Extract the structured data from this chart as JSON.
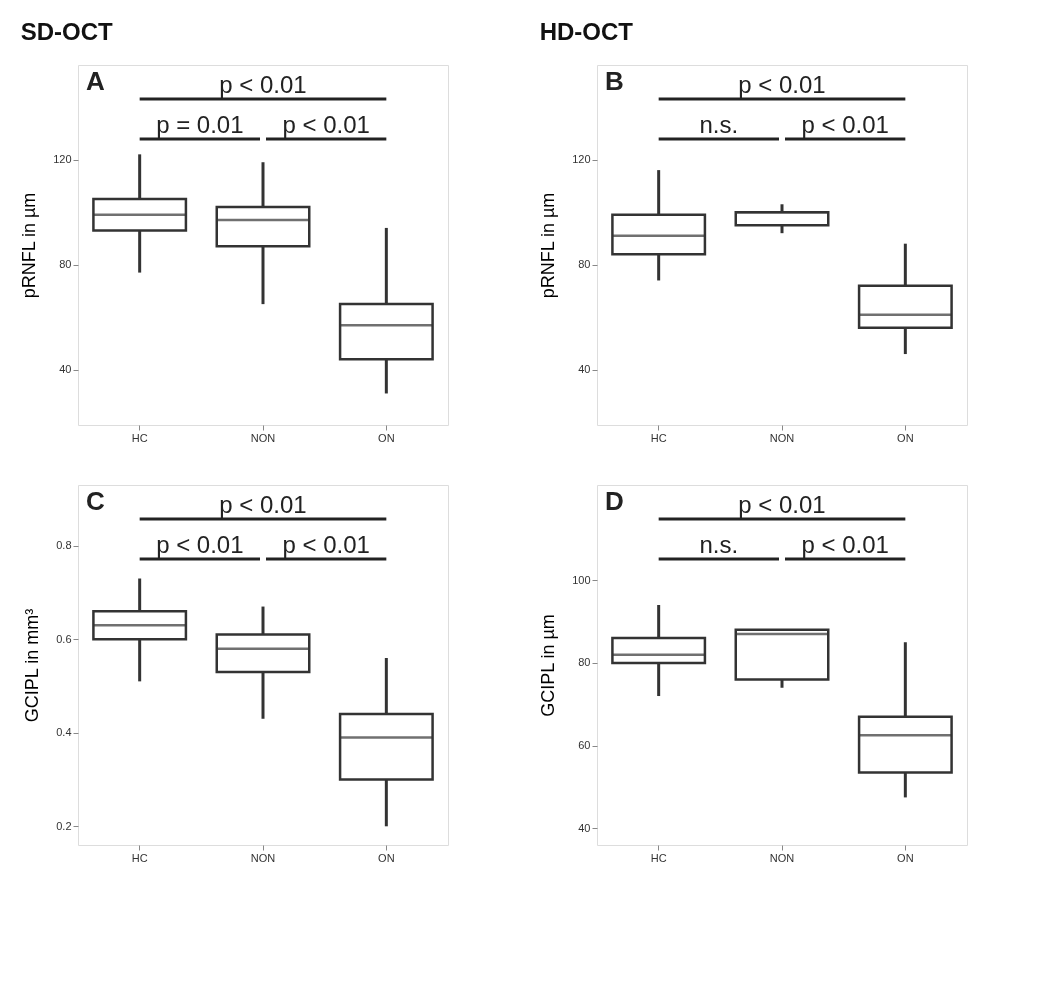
{
  "chart_data": [
    {
      "type": "box",
      "title": "A",
      "subtitle": "SD-OCT",
      "ylabel": "pRNFL in µm",
      "categories": [
        "HC",
        "NON",
        "ON"
      ],
      "ylim": [
        19,
        156
      ],
      "yticks": [
        40,
        80,
        120
      ],
      "grid": false,
      "boxes": [
        {
          "low": 77,
          "q1": 93,
          "median": 99,
          "q3": 105,
          "high": 122
        },
        {
          "low": 65,
          "q1": 87,
          "median": 97,
          "q3": 102,
          "high": 119
        },
        {
          "low": 31,
          "q1": 44,
          "median": 57,
          "q3": 65,
          "high": 94
        }
      ],
      "annotations": [
        "p < 0.01",
        "p = 0.01",
        "p < 0.01"
      ]
    },
    {
      "type": "box",
      "title": "B",
      "subtitle": "HD-OCT",
      "ylabel": "pRNFL in µm",
      "categories": [
        "HC",
        "NON",
        "ON"
      ],
      "ylim": [
        19,
        156
      ],
      "yticks": [
        40,
        80,
        120
      ],
      "grid": false,
      "boxes": [
        {
          "low": 74,
          "q1": 84,
          "median": 91,
          "q3": 99,
          "high": 116
        },
        {
          "low": 92,
          "q1": 95,
          "median": 100,
          "q3": 100,
          "high": 103
        },
        {
          "low": 46,
          "q1": 56,
          "median": 61,
          "q3": 72,
          "high": 88
        }
      ],
      "annotations": [
        "p < 0.01",
        "n.s.",
        "p < 0.01"
      ]
    },
    {
      "type": "box",
      "title": "C",
      "ylabel": "GCIPL in mm³",
      "categories": [
        "HC",
        "NON",
        "ON"
      ],
      "ylim": [
        0.16,
        0.93
      ],
      "yticks": [
        0.2,
        0.4,
        0.6,
        0.8
      ],
      "grid": false,
      "boxes": [
        {
          "low": 0.51,
          "q1": 0.6,
          "median": 0.63,
          "q3": 0.66,
          "high": 0.73
        },
        {
          "low": 0.43,
          "q1": 0.53,
          "median": 0.58,
          "q3": 0.61,
          "high": 0.67
        },
        {
          "low": 0.2,
          "q1": 0.3,
          "median": 0.39,
          "q3": 0.44,
          "high": 0.56
        }
      ],
      "annotations": [
        "p < 0.01",
        "p < 0.01",
        "p < 0.01"
      ]
    },
    {
      "type": "box",
      "title": "D",
      "ylabel": "GCIPL in µm",
      "categories": [
        "HC",
        "NON",
        "ON"
      ],
      "ylim": [
        36,
        123
      ],
      "yticks": [
        40,
        60,
        80,
        100
      ],
      "grid": false,
      "boxes": [
        {
          "low": 72,
          "q1": 80,
          "median": 82,
          "q3": 86,
          "high": 94
        },
        {
          "low": 74,
          "q1": 76,
          "median": 87,
          "q3": 88,
          "high": 88
        },
        {
          "low": 47.5,
          "q1": 53.5,
          "median": 62.5,
          "q3": 67,
          "high": 85
        }
      ],
      "annotations": [
        "p < 0.01",
        "n.s.",
        "p < 0.01"
      ]
    }
  ]
}
